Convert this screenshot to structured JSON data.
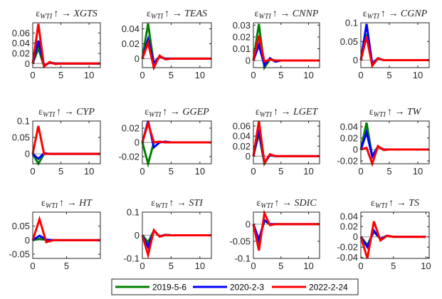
{
  "chart_data": [
    {
      "type": "line",
      "title": {
        "symbol": "ε",
        "subscript": "WTI",
        "arrows": "↑ →",
        "variable": "XGTS"
      },
      "xlim": [
        0,
        12
      ],
      "ylim": [
        -0.008,
        0.08
      ],
      "xticks": [
        0,
        5,
        10
      ],
      "yticks": [
        0,
        0.02,
        0.04,
        0.06
      ],
      "series": [
        {
          "name": "2019-5-6",
          "values": [
            0,
            0.03,
            -0.005,
            0.002,
            0,
            0,
            0,
            0,
            0,
            0,
            0,
            0,
            0
          ]
        },
        {
          "name": "2020-2-3",
          "values": [
            0,
            0.045,
            -0.004,
            0.002,
            0,
            0,
            0,
            0,
            0,
            0,
            0,
            0,
            0
          ]
        },
        {
          "name": "2022-2-24",
          "values": [
            0,
            0.078,
            -0.006,
            0.003,
            -0.001,
            0,
            0,
            0,
            0,
            0,
            0,
            0,
            0
          ]
        }
      ]
    },
    {
      "type": "line",
      "title": {
        "symbol": "ε",
        "subscript": "WTI",
        "arrows": "↑ →",
        "variable": "TEAS"
      },
      "xlim": [
        0,
        12
      ],
      "ylim": [
        -0.012,
        0.048
      ],
      "xticks": [
        0,
        5,
        10
      ],
      "yticks": [
        0,
        0.02,
        0.04
      ],
      "series": [
        {
          "name": "2019-5-6",
          "values": [
            0,
            0.047,
            -0.008,
            0.003,
            0,
            0,
            0,
            0,
            0,
            0,
            0,
            0,
            0
          ]
        },
        {
          "name": "2020-2-3",
          "values": [
            0,
            0.026,
            -0.006,
            0.003,
            0,
            0,
            0,
            0,
            0,
            0,
            0,
            0,
            0
          ]
        },
        {
          "name": "2022-2-24",
          "values": [
            0,
            0.021,
            -0.012,
            0.004,
            -0.001,
            0,
            0,
            0,
            0,
            0,
            0,
            0,
            0
          ]
        }
      ]
    },
    {
      "type": "line",
      "title": {
        "symbol": "ε",
        "subscript": "WTI",
        "arrows": "↑ →",
        "variable": "CNNP"
      },
      "xlim": [
        0,
        12
      ],
      "ylim": [
        -0.006,
        0.032
      ],
      "xticks": [
        0,
        5,
        10
      ],
      "yticks": [
        0,
        0.01,
        0.02,
        0.03
      ],
      "series": [
        {
          "name": "2019-5-6",
          "values": [
            0,
            0.031,
            -0.006,
            0.001,
            0,
            0,
            0,
            0,
            0,
            0,
            0,
            0,
            0
          ]
        },
        {
          "name": "2020-2-3",
          "values": [
            0,
            0.013,
            -0.004,
            0.002,
            -0.001,
            0,
            0,
            0,
            0,
            0,
            0,
            0,
            0
          ]
        },
        {
          "name": "2022-2-24",
          "values": [
            0,
            0.021,
            -0.001,
            0.001,
            0,
            0,
            0,
            0,
            0,
            0,
            0,
            0,
            0
          ]
        }
      ]
    },
    {
      "type": "line",
      "title": {
        "symbol": "ε",
        "subscript": "WTI",
        "arrows": "↑ →",
        "variable": "CGNP"
      },
      "xlim": [
        0,
        12
      ],
      "ylim": [
        -0.02,
        0.1
      ],
      "xticks": [
        0,
        5,
        10
      ],
      "yticks": [
        0,
        0.05,
        0.1
      ],
      "series": [
        {
          "name": "2019-5-6",
          "values": [
            0,
            0.07,
            -0.01,
            0.005,
            0,
            0,
            0,
            0,
            0,
            0,
            0,
            0,
            0
          ]
        },
        {
          "name": "2020-2-3",
          "values": [
            0,
            0.097,
            -0.01,
            0.005,
            0,
            0,
            0,
            0,
            0,
            0,
            0,
            0,
            0
          ]
        },
        {
          "name": "2022-2-24",
          "values": [
            0,
            0.063,
            -0.015,
            0.005,
            0,
            0,
            0,
            0,
            0,
            0,
            0,
            0,
            0
          ]
        }
      ]
    },
    {
      "type": "line",
      "title": {
        "symbol": "ε",
        "subscript": "WTI",
        "arrows": "↑ →",
        "variable": "CYP"
      },
      "xlim": [
        0,
        12
      ],
      "ylim": [
        -0.03,
        0.1
      ],
      "xticks": [
        0,
        5,
        10
      ],
      "yticks": [
        0,
        0.05,
        0.1
      ],
      "series": [
        {
          "name": "2019-5-6",
          "values": [
            0,
            -0.03,
            0,
            0,
            0,
            0,
            0,
            0,
            0,
            0,
            0,
            0,
            0
          ]
        },
        {
          "name": "2020-2-3",
          "values": [
            0,
            -0.015,
            0.002,
            0,
            0,
            0,
            0,
            0,
            0,
            0,
            0,
            0,
            0
          ]
        },
        {
          "name": "2022-2-24",
          "values": [
            0,
            0.085,
            0,
            0,
            0,
            0,
            0,
            0,
            0,
            0,
            0,
            0,
            0
          ]
        }
      ]
    },
    {
      "type": "line",
      "title": {
        "symbol": "ε",
        "subscript": "WTI",
        "arrows": "↑ →",
        "variable": "GGEP"
      },
      "xlim": [
        0,
        12
      ],
      "ylim": [
        -0.03,
        0.03
      ],
      "xticks": [
        0,
        5,
        10
      ],
      "yticks": [
        -0.02,
        0,
        0.02
      ],
      "series": [
        {
          "name": "2019-5-6",
          "values": [
            0,
            -0.03,
            0,
            0.001,
            0,
            0,
            0,
            0,
            0,
            0,
            0,
            0,
            0
          ]
        },
        {
          "name": "2020-2-3",
          "values": [
            0,
            0.03,
            -0.007,
            0,
            0.001,
            0,
            0,
            0,
            0,
            0,
            0,
            0,
            0
          ]
        },
        {
          "name": "2022-2-24",
          "values": [
            0,
            0.027,
            0,
            0.001,
            0,
            0,
            0,
            0,
            0,
            0,
            0,
            0,
            0
          ]
        }
      ]
    },
    {
      "type": "line",
      "title": {
        "symbol": "ε",
        "subscript": "WTI",
        "arrows": "↑ →",
        "variable": "LGET"
      },
      "xlim": [
        0,
        12
      ],
      "ylim": [
        -0.015,
        0.07
      ],
      "xticks": [
        0,
        5,
        10
      ],
      "yticks": [
        0,
        0.02,
        0.04,
        0.06
      ],
      "series": [
        {
          "name": "2019-5-6",
          "values": [
            0,
            0.045,
            -0.015,
            0.003,
            0,
            0,
            0,
            0,
            0,
            0,
            0,
            0,
            0
          ]
        },
        {
          "name": "2020-2-3",
          "values": [
            0,
            0.052,
            -0.013,
            0.002,
            0,
            0,
            0,
            0,
            0,
            0,
            0,
            0,
            0
          ]
        },
        {
          "name": "2022-2-24",
          "values": [
            0,
            0.07,
            -0.013,
            0.004,
            0,
            0,
            0,
            0,
            0,
            0,
            0,
            0,
            0
          ]
        }
      ]
    },
    {
      "type": "line",
      "title": {
        "symbol": "ε",
        "subscript": "WTI",
        "arrows": "↑ →",
        "variable": "TW"
      },
      "xlim": [
        0,
        12
      ],
      "ylim": [
        -0.025,
        0.05
      ],
      "xticks": [
        0,
        5,
        10
      ],
      "yticks": [
        -0.02,
        0,
        0.02,
        0.04
      ],
      "series": [
        {
          "name": "2019-5-6",
          "values": [
            0,
            0.047,
            -0.012,
            0.005,
            0,
            0,
            0,
            0,
            0,
            0,
            0,
            0,
            0
          ]
        },
        {
          "name": "2020-2-3",
          "values": [
            0,
            0.03,
            -0.012,
            0.005,
            0,
            0,
            0,
            0,
            0,
            0,
            0,
            0,
            0
          ]
        },
        {
          "name": "2022-2-24",
          "values": [
            0,
            0.003,
            -0.025,
            0.006,
            -0.001,
            0,
            0,
            0,
            0,
            0,
            0,
            0,
            0
          ]
        }
      ]
    },
    {
      "type": "line",
      "title": {
        "symbol": "ε",
        "subscript": "WTI",
        "arrows": "↑ →",
        "variable": "HT"
      },
      "xlim": [
        0,
        10
      ],
      "ylim": [
        -0.065,
        0.1
      ],
      "xticks": [
        0,
        5
      ],
      "yticks": [
        -0.05,
        0,
        0.05
      ],
      "series": [
        {
          "name": "2019-5-6",
          "values": [
            0,
            0.005,
            0.001,
            0,
            0,
            0,
            0,
            0,
            0,
            0,
            0
          ]
        },
        {
          "name": "2020-2-3",
          "values": [
            0,
            0.016,
            0.002,
            0,
            0,
            0,
            0,
            0,
            0,
            0,
            0
          ]
        },
        {
          "name": "2022-2-24",
          "values": [
            0,
            0.075,
            -0.007,
            0,
            0,
            0,
            0,
            0,
            0,
            0,
            0
          ]
        }
      ]
    },
    {
      "type": "line",
      "title": {
        "symbol": "ε",
        "subscript": "WTI",
        "arrows": "↑ →",
        "variable": "STI"
      },
      "xlim": [
        0,
        12
      ],
      "ylim": [
        -0.1,
        0.1
      ],
      "xticks": [
        0,
        5,
        10
      ],
      "yticks": [
        -0.1,
        0,
        0.1
      ],
      "series": [
        {
          "name": "2019-5-6",
          "values": [
            0,
            -0.03,
            0.02,
            -0.005,
            0.002,
            0,
            0,
            0,
            0,
            0,
            0,
            0,
            0
          ]
        },
        {
          "name": "2020-2-3",
          "values": [
            0,
            -0.05,
            0.02,
            -0.005,
            0.002,
            0,
            0,
            0,
            0,
            0,
            0,
            0,
            0
          ]
        },
        {
          "name": "2022-2-24",
          "values": [
            0,
            -0.085,
            0.022,
            -0.006,
            0.001,
            0,
            0,
            0,
            0,
            0,
            0,
            0,
            0
          ]
        }
      ]
    },
    {
      "type": "line",
      "title": {
        "symbol": "ε",
        "subscript": "WTI",
        "arrows": "↑ →",
        "variable": "SDIC"
      },
      "xlim": [
        0,
        12
      ],
      "ylim": [
        -0.1,
        0.035
      ],
      "xticks": [
        0,
        5,
        10
      ],
      "yticks": [
        -0.1,
        -0.05,
        0
      ],
      "series": [
        {
          "name": "2019-5-6",
          "values": [
            0,
            -0.05,
            0.01,
            0,
            0,
            0,
            0,
            0,
            0,
            0,
            0,
            0,
            0
          ]
        },
        {
          "name": "2020-2-3",
          "values": [
            0,
            -0.045,
            0.012,
            0,
            0,
            0,
            0,
            0,
            0,
            0,
            0,
            0,
            0
          ]
        },
        {
          "name": "2022-2-24",
          "values": [
            0,
            -0.077,
            0.032,
            -0.003,
            0,
            0,
            0,
            0,
            0,
            0,
            0,
            0,
            0
          ]
        }
      ]
    },
    {
      "type": "line",
      "title": {
        "symbol": "ε",
        "subscript": "WTI",
        "arrows": "↑ →",
        "variable": "TS"
      },
      "xlim": [
        0,
        10.5
      ],
      "ylim": [
        -0.042,
        0.048
      ],
      "xticks": [
        0,
        5,
        10
      ],
      "yticks": [
        -0.04,
        -0.02,
        0,
        0.02,
        0.04
      ],
      "series": [
        {
          "name": "2019-5-6",
          "values": [
            0,
            -0.016,
            0.01,
            -0.004,
            0.002,
            0,
            0,
            0,
            0,
            0,
            0
          ]
        },
        {
          "name": "2020-2-3",
          "values": [
            0,
            -0.02,
            0.012,
            -0.004,
            0.002,
            0,
            0,
            0,
            0,
            0,
            0
          ]
        },
        {
          "name": "2022-2-24",
          "values": [
            0,
            -0.042,
            0.03,
            -0.007,
            0.002,
            0,
            0,
            0,
            0,
            0,
            0
          ]
        }
      ]
    }
  ],
  "legend": {
    "placement": "bottom-center",
    "entries": [
      {
        "label": "2019-5-6",
        "color": "#008000"
      },
      {
        "label": "2020-2-3",
        "color": "#0000ff"
      },
      {
        "label": "2022-2-24",
        "color": "#ff0000"
      }
    ]
  },
  "colors": {
    "zero_line": "#a0a0a0",
    "axes": "#262626"
  }
}
